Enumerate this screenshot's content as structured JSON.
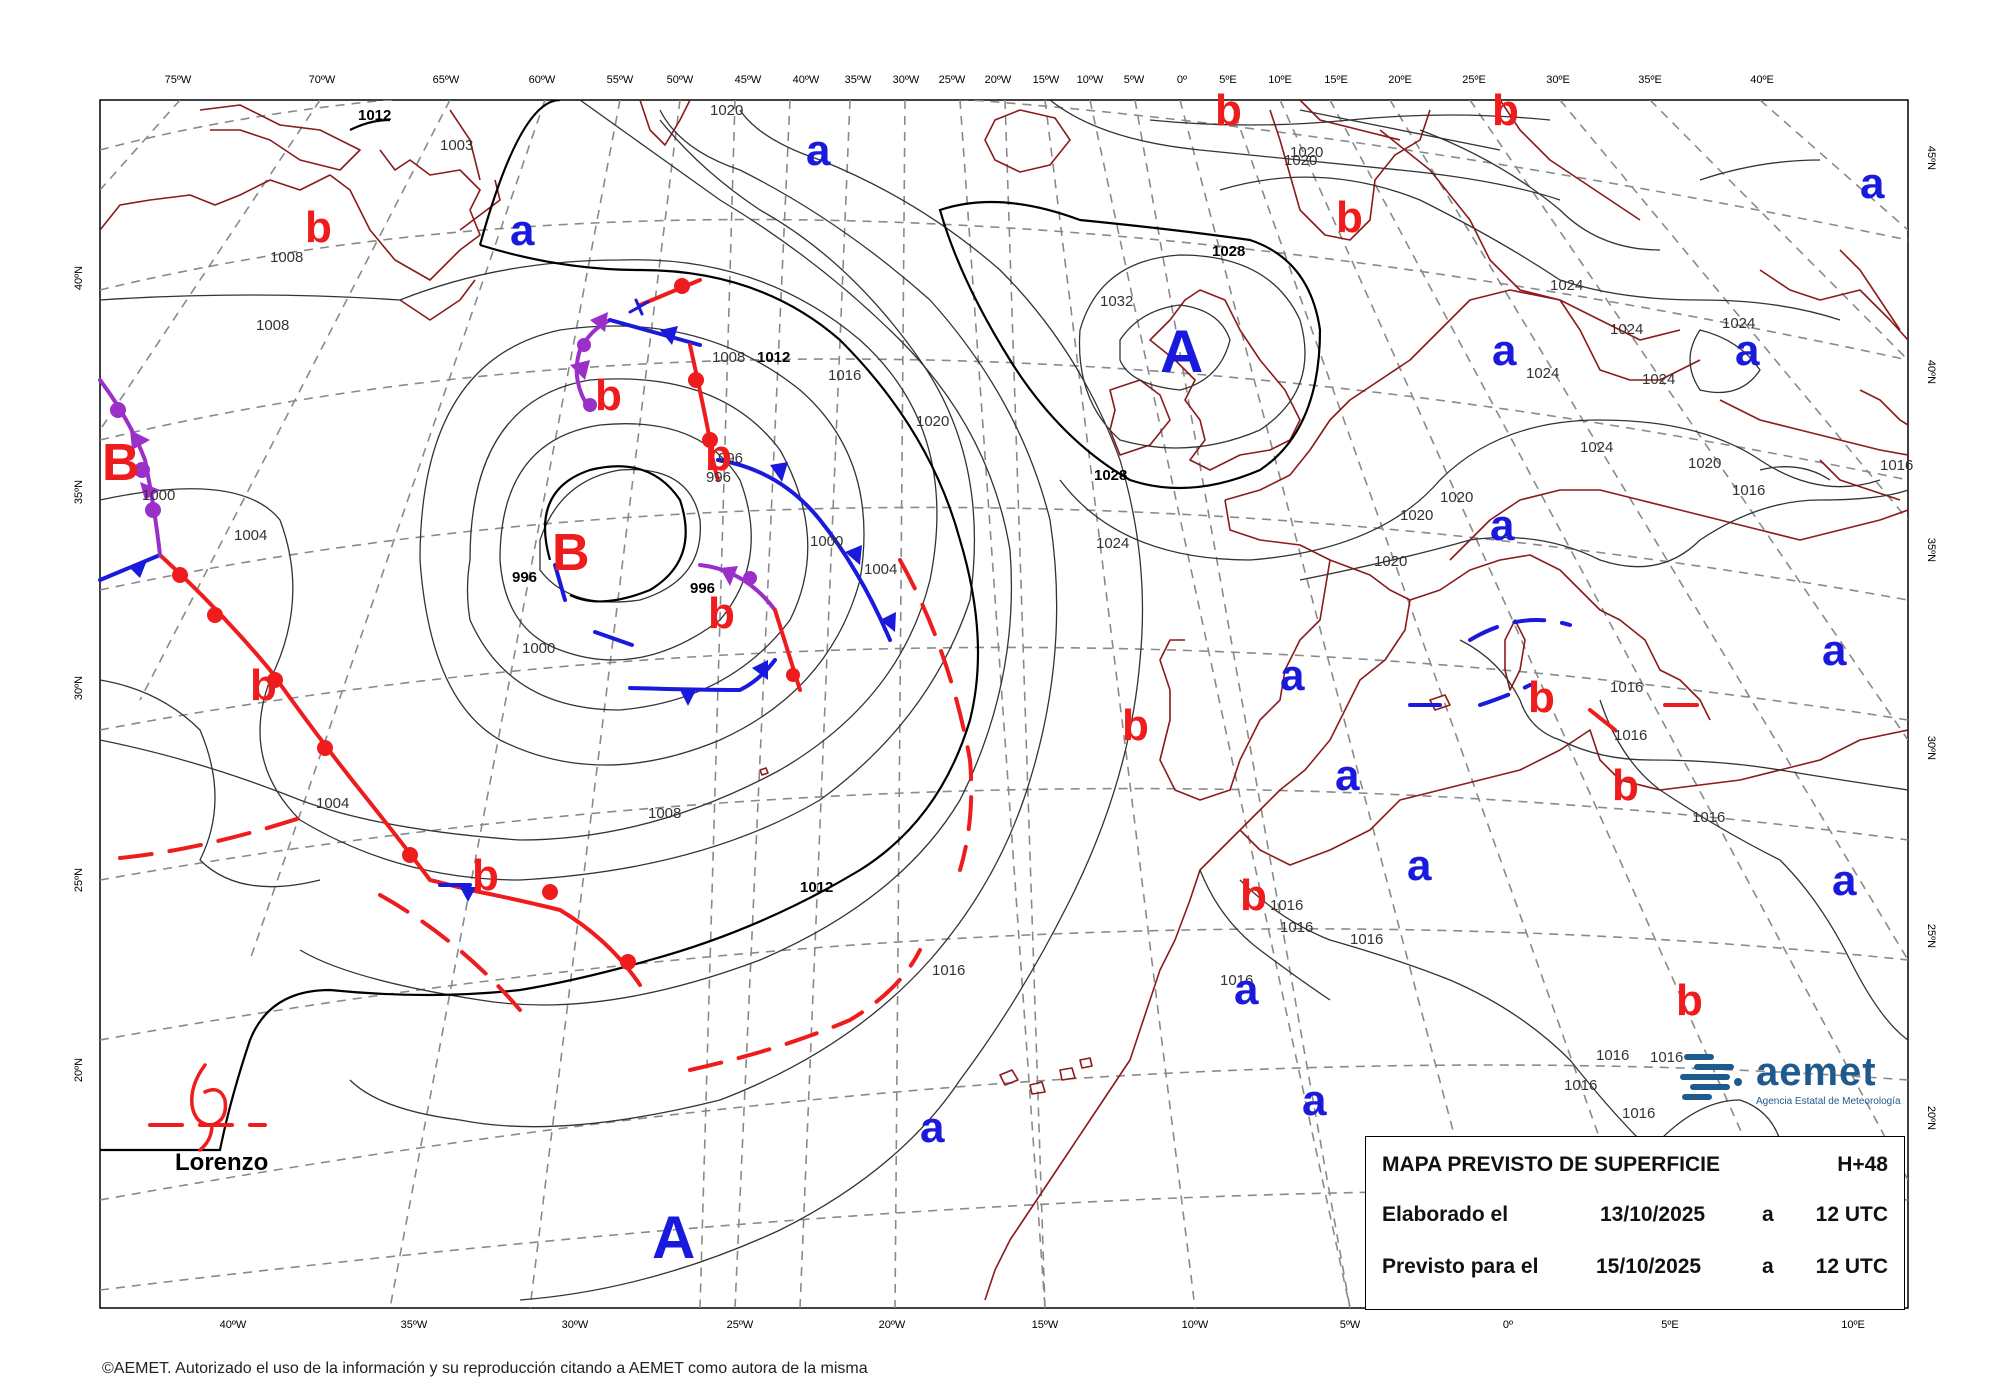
{
  "map": {
    "top_lon_labels": [
      "75ºW",
      "70ºW",
      "65ºW",
      "60ºW",
      "55ºW",
      "50ºW",
      "45ºW",
      "40ºW",
      "35ºW",
      "30ºW",
      "25ºW",
      "20ºW",
      "15ºW",
      "10ºW",
      "5ºW",
      "0º",
      "5ºE",
      "10ºE",
      "15ºE",
      "20ºE",
      "25ºE",
      "30ºE",
      "35ºE",
      "40ºE"
    ],
    "bottom_lon_labels": [
      "40ºW",
      "35ºW",
      "30ºW",
      "25ºW",
      "20ºW",
      "15ºW",
      "10ºW",
      "5ºW",
      "0º",
      "5ºE",
      "10ºE"
    ],
    "left_lat_labels": [
      "40ºN",
      "35ºN",
      "30ºN",
      "25ºN",
      "20ºN"
    ],
    "right_lat_labels": [
      "45ºN",
      "40ºN",
      "35ºN",
      "30ºN",
      "25ºN",
      "20ºN"
    ],
    "isobar_labels": [
      "1012",
      "1008",
      "1008",
      "1004",
      "1000",
      "1000",
      "996",
      "996",
      "996",
      "996",
      "1000",
      "1004",
      "1008",
      "1012",
      "1016",
      "1020",
      "1020",
      "1016",
      "1012",
      "1008",
      "1004",
      "1020",
      "1024",
      "1028",
      "1028",
      "1032",
      "1024",
      "1024",
      "1024",
      "1024",
      "1024",
      "1024",
      "1020",
      "1020",
      "1020",
      "1020",
      "1016",
      "1016",
      "1016",
      "1016",
      "1016",
      "1016",
      "1016",
      "1016",
      "1016",
      "1016",
      "1003",
      "1020",
      "1016",
      "1016",
      "1016"
    ],
    "centers": [
      {
        "letter": "A",
        "type": "high"
      },
      {
        "letter": "A",
        "type": "high"
      },
      {
        "letter": "B",
        "type": "low"
      },
      {
        "letter": "B",
        "type": "low"
      }
    ],
    "minor_highs": [
      "a",
      "a",
      "a",
      "a",
      "a",
      "a",
      "a",
      "a",
      "a",
      "a",
      "a",
      "a",
      "a",
      "a",
      "a"
    ],
    "minor_lows": [
      "b",
      "b",
      "b",
      "b",
      "b",
      "b",
      "b",
      "b",
      "b",
      "b",
      "b",
      "b",
      "b",
      "b"
    ],
    "storm_name": "Lorenzo",
    "colors": {
      "high": "#1a1adc",
      "low": "#ee1c1c",
      "warm_front": "#ee1c1c",
      "cold_front": "#1a1adc",
      "occluded_front": "#9b30c8",
      "coast": "#8b1a1a",
      "isobar": "#333333",
      "grid": "#888888"
    }
  },
  "info": {
    "title": "MAPA PREVISTO DE SUPERFICIE",
    "lead": "H+48",
    "made_label": "Elaborado el",
    "made_date": "13/10/2025",
    "made_at": "a",
    "made_time": "12 UTC",
    "valid_label": "Previsto para el",
    "valid_date": "15/10/2025",
    "valid_at": "a",
    "valid_time": "12 UTC"
  },
  "logo": {
    "word": "aemet",
    "subtitle": "Agencia Estatal de Meteorología",
    "icon": "aemet-logo-icon"
  },
  "copyright": "©AEMET. Autorizado el uso de la información y su reproducción citando a AEMET como autora de la misma"
}
